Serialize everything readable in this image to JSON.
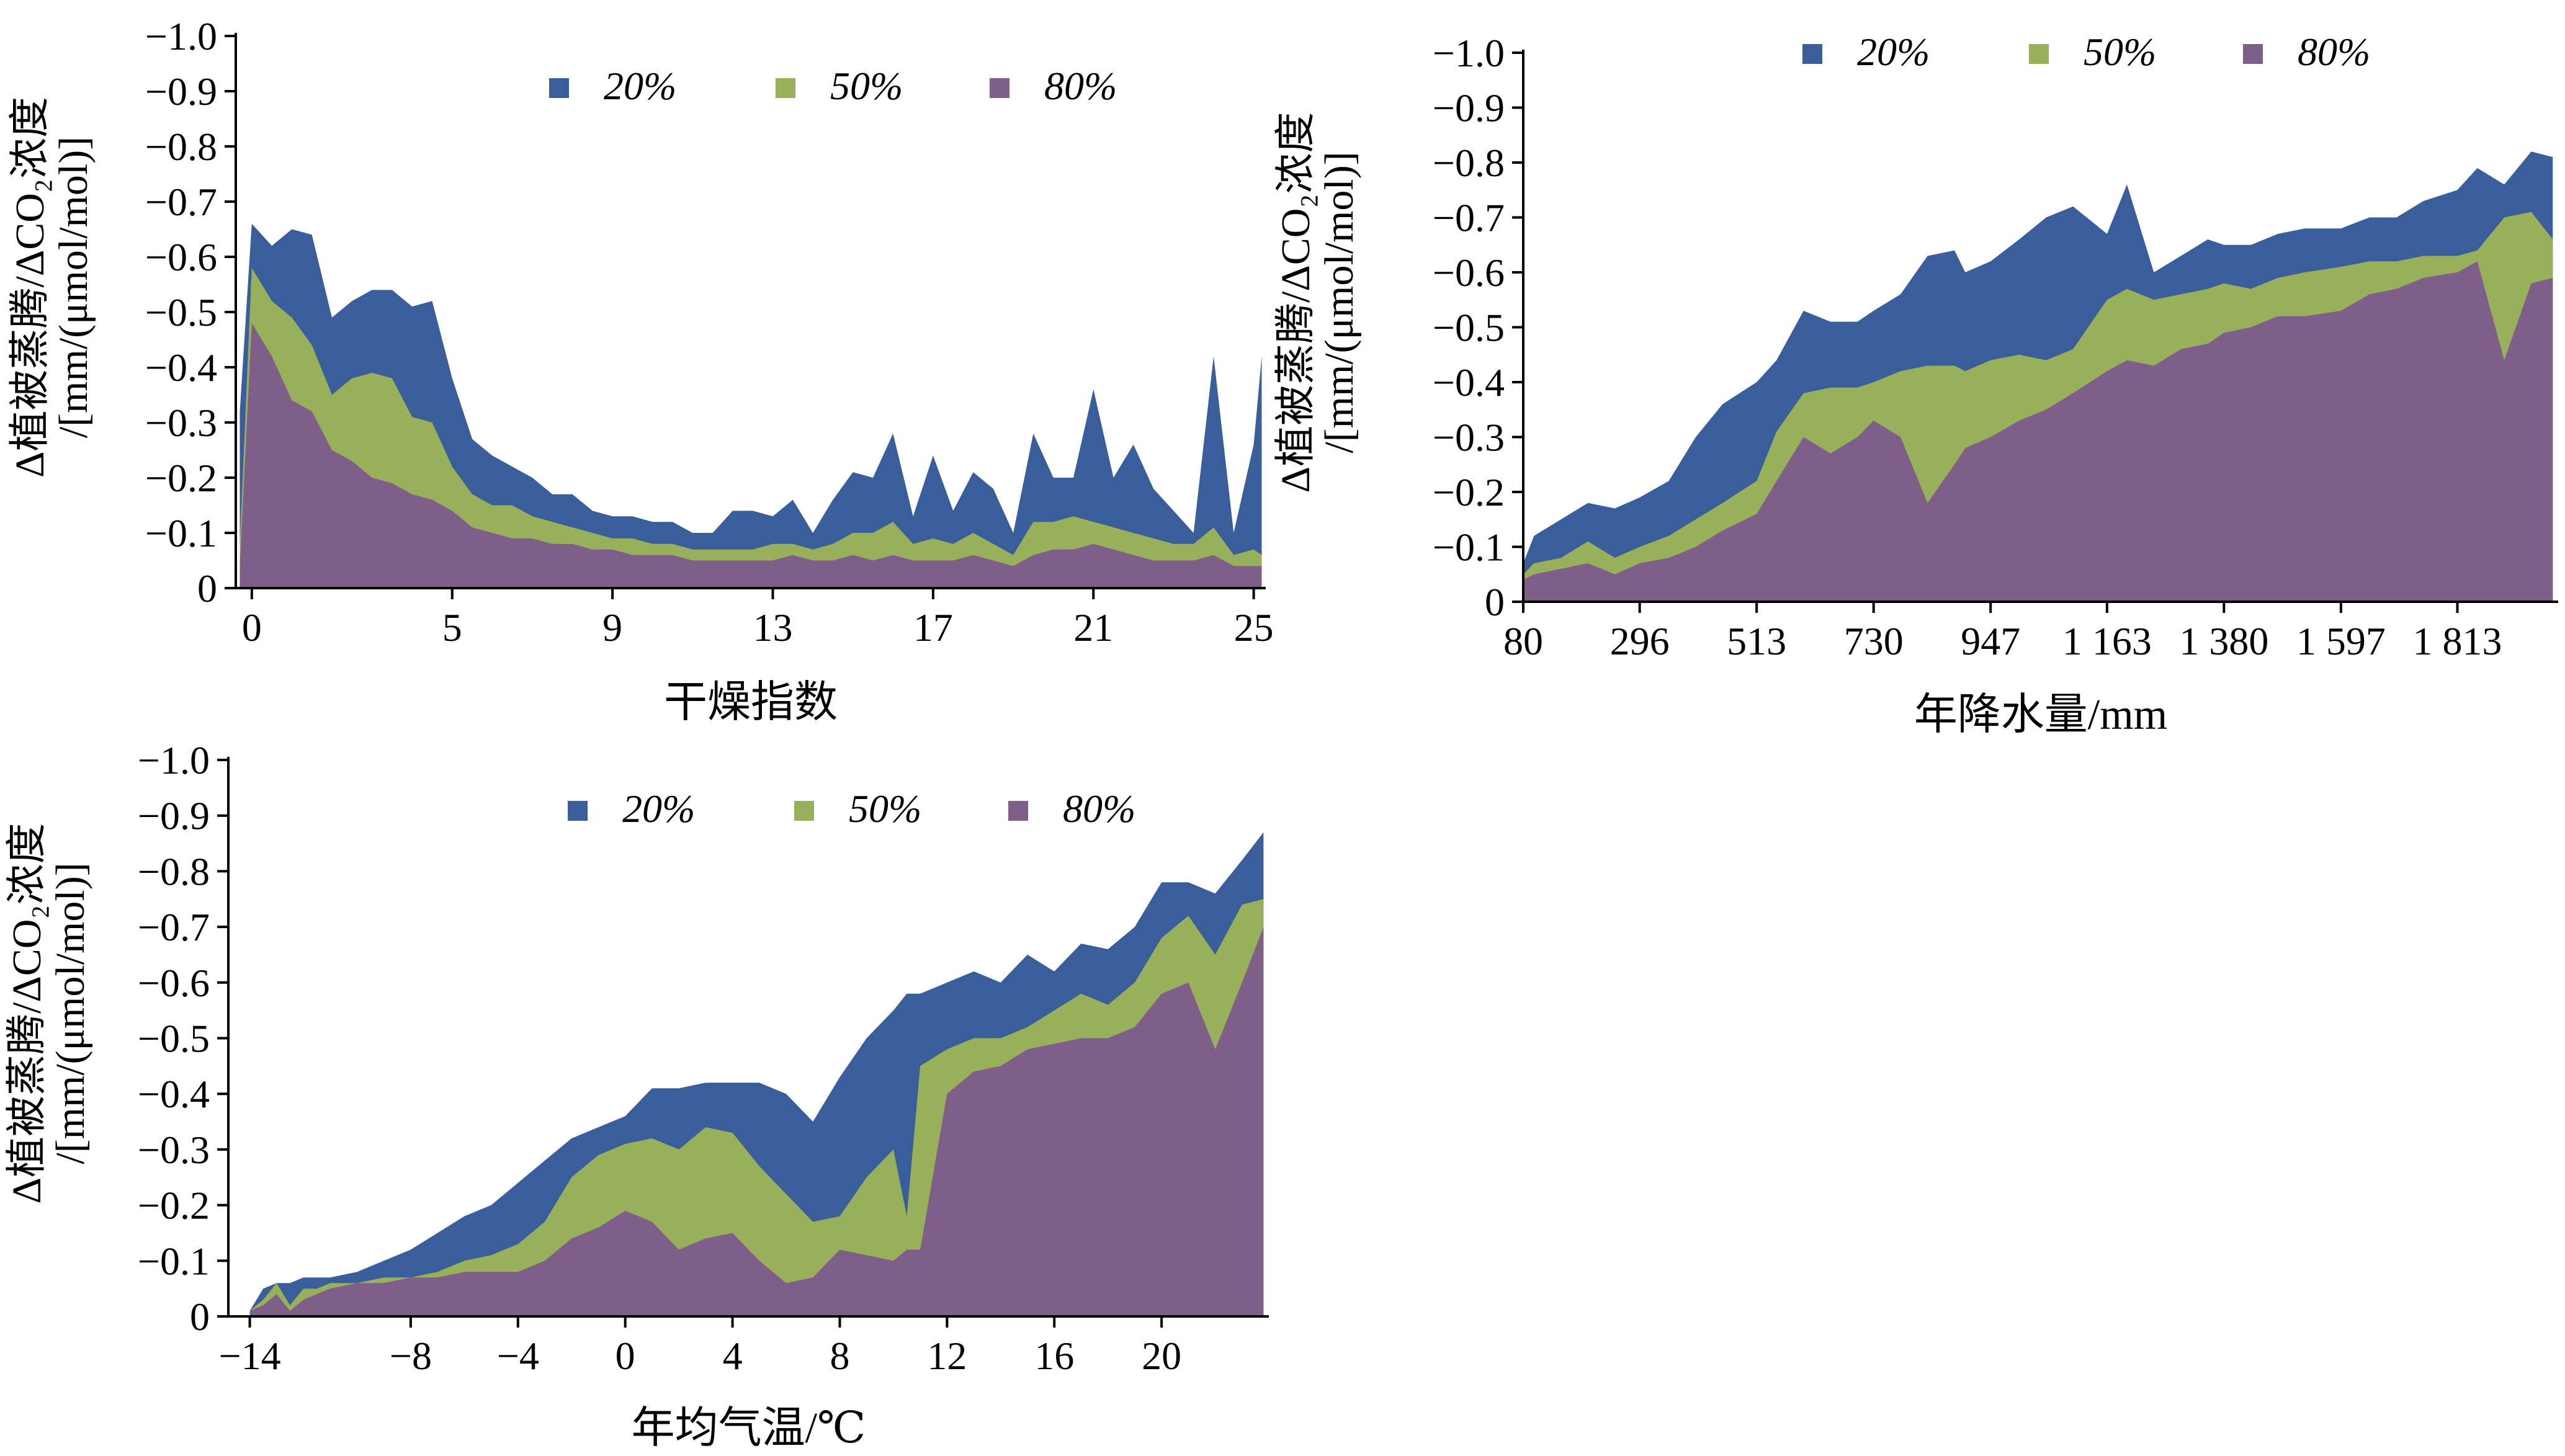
{
  "colors": {
    "20%": "#3a5e9c",
    "50%": "#98b05a",
    "80%": "#7f5e8a",
    "axis": "#000000"
  },
  "ylabel_lines": [
    "Δ植被蒸腾/ΔCO₂浓度",
    "/[mm/(μmol/mol)]"
  ],
  "chart_data": [
    {
      "type": "area",
      "xlabel": "干燥指数",
      "ylabel": "Δ植被蒸腾/ΔCO₂浓度/[mm/(μmol/mol)]",
      "xlim": [
        -0.4,
        25.3
      ],
      "ylim": [
        0,
        -1.0
      ],
      "yticks": [
        0,
        -0.1,
        -0.2,
        -0.3,
        -0.4,
        -0.5,
        -0.6,
        -0.7,
        -0.8,
        -0.9,
        -1.0
      ],
      "ytick_labels": [
        "0",
        "−0.1",
        "−0.2",
        "−0.3",
        "−0.4",
        "−0.5",
        "−0.6",
        "−0.7",
        "−0.8",
        "−0.9",
        "−1.0"
      ],
      "xticks": [
        0,
        5,
        9,
        13,
        17,
        21,
        25
      ],
      "xtick_labels": [
        "0",
        "5",
        "9",
        "13",
        "17",
        "21",
        "25"
      ],
      "legend": [
        "20%",
        "50%",
        "80%"
      ],
      "legend_position": "top-center",
      "x": [
        -0.3,
        0,
        0.5,
        1,
        1.5,
        2,
        2.5,
        3,
        3.5,
        4,
        4.5,
        5,
        5.5,
        6,
        6.5,
        7,
        7.5,
        8,
        8.5,
        9,
        9.5,
        10,
        10.5,
        11,
        11.5,
        12,
        12.5,
        13,
        13.5,
        14,
        14.5,
        15,
        15.5,
        16,
        16.5,
        17,
        17.5,
        18,
        18.5,
        19,
        19.5,
        20,
        20.5,
        21,
        21.5,
        22,
        22.5,
        23,
        23.5,
        24,
        24.5,
        25,
        25.2
      ],
      "series": [
        {
          "name": "20%",
          "values": [
            -0.32,
            -0.66,
            -0.62,
            -0.65,
            -0.64,
            -0.49,
            -0.52,
            -0.54,
            -0.54,
            -0.51,
            -0.52,
            -0.38,
            -0.27,
            -0.24,
            -0.22,
            -0.2,
            -0.17,
            -0.17,
            -0.14,
            -0.13,
            -0.13,
            -0.12,
            -0.12,
            -0.1,
            -0.1,
            -0.14,
            -0.14,
            -0.13,
            -0.16,
            -0.1,
            -0.16,
            -0.21,
            -0.2,
            -0.28,
            -0.13,
            -0.24,
            -0.14,
            -0.21,
            -0.18,
            -0.1,
            -0.28,
            -0.2,
            -0.2,
            -0.36,
            -0.2,
            -0.26,
            -0.18,
            -0.14,
            -0.1,
            -0.42,
            -0.1,
            -0.26,
            -0.42
          ]
        },
        {
          "name": "50%",
          "values": [
            -0.08,
            -0.58,
            -0.52,
            -0.49,
            -0.44,
            -0.35,
            -0.38,
            -0.39,
            -0.38,
            -0.31,
            -0.3,
            -0.22,
            -0.17,
            -0.15,
            -0.15,
            -0.13,
            -0.12,
            -0.11,
            -0.1,
            -0.09,
            -0.09,
            -0.08,
            -0.08,
            -0.07,
            -0.07,
            -0.07,
            -0.07,
            -0.08,
            -0.08,
            -0.07,
            -0.08,
            -0.1,
            -0.1,
            -0.12,
            -0.08,
            -0.09,
            -0.08,
            -0.1,
            -0.08,
            -0.06,
            -0.12,
            -0.12,
            -0.13,
            -0.12,
            -0.11,
            -0.1,
            -0.09,
            -0.08,
            -0.08,
            -0.11,
            -0.06,
            -0.07,
            -0.06
          ]
        },
        {
          "name": "80%",
          "values": [
            -0.04,
            -0.48,
            -0.42,
            -0.34,
            -0.32,
            -0.25,
            -0.23,
            -0.2,
            -0.19,
            -0.17,
            -0.16,
            -0.14,
            -0.11,
            -0.1,
            -0.09,
            -0.09,
            -0.08,
            -0.08,
            -0.07,
            -0.07,
            -0.06,
            -0.06,
            -0.06,
            -0.05,
            -0.05,
            -0.05,
            -0.05,
            -0.05,
            -0.06,
            -0.05,
            -0.05,
            -0.06,
            -0.05,
            -0.06,
            -0.05,
            -0.05,
            -0.05,
            -0.06,
            -0.05,
            -0.04,
            -0.06,
            -0.07,
            -0.07,
            -0.08,
            -0.07,
            -0.06,
            -0.05,
            -0.05,
            -0.05,
            -0.06,
            -0.04,
            -0.04,
            -0.04
          ]
        }
      ]
    },
    {
      "type": "area",
      "xlabel": "年降水量/mm",
      "ylabel": "Δ植被蒸腾/ΔCO₂浓度/[mm/(μmol/mol)]",
      "xlim": [
        80,
        2000
      ],
      "ylim": [
        0,
        -1.0
      ],
      "yticks": [
        0,
        -0.1,
        -0.2,
        -0.3,
        -0.4,
        -0.5,
        -0.6,
        -0.7,
        -0.8,
        -0.9,
        -1.0
      ],
      "ytick_labels": [
        "0",
        "−0.1",
        "−0.2",
        "−0.3",
        "−0.4",
        "−0.5",
        "−0.6",
        "−0.7",
        "−0.8",
        "−0.9",
        "−1.0"
      ],
      "xticks": [
        80,
        296,
        513,
        730,
        947,
        1163,
        1380,
        1597,
        1813
      ],
      "xtick_labels": [
        "80",
        "296",
        "513",
        "730",
        "947",
        "1 163",
        "1 380",
        "1 597",
        "1 813"
      ],
      "legend": [
        "20%",
        "50%",
        "80%"
      ],
      "legend_position": "top-center",
      "x": [
        80,
        100,
        150,
        200,
        250,
        296,
        350,
        400,
        450,
        513,
        550,
        600,
        650,
        700,
        730,
        780,
        830,
        880,
        900,
        947,
        1000,
        1050,
        1100,
        1163,
        1200,
        1250,
        1300,
        1350,
        1380,
        1430,
        1480,
        1530,
        1597,
        1650,
        1700,
        1750,
        1813,
        1850,
        1900,
        1950,
        1990
      ],
      "series": [
        {
          "name": "20%",
          "values": [
            -0.07,
            -0.12,
            -0.15,
            -0.18,
            -0.17,
            -0.19,
            -0.22,
            -0.3,
            -0.36,
            -0.4,
            -0.44,
            -0.53,
            -0.51,
            -0.51,
            -0.53,
            -0.56,
            -0.63,
            -0.64,
            -0.6,
            -0.62,
            -0.66,
            -0.7,
            -0.72,
            -0.67,
            -0.76,
            -0.6,
            -0.63,
            -0.66,
            -0.65,
            -0.65,
            -0.67,
            -0.68,
            -0.68,
            -0.7,
            -0.7,
            -0.73,
            -0.75,
            -0.79,
            -0.76,
            -0.82,
            -0.81
          ]
        },
        {
          "name": "50%",
          "values": [
            -0.05,
            -0.07,
            -0.08,
            -0.11,
            -0.08,
            -0.1,
            -0.12,
            -0.15,
            -0.18,
            -0.22,
            -0.31,
            -0.38,
            -0.39,
            -0.39,
            -0.4,
            -0.42,
            -0.43,
            -0.43,
            -0.42,
            -0.44,
            -0.45,
            -0.44,
            -0.46,
            -0.55,
            -0.57,
            -0.55,
            -0.56,
            -0.57,
            -0.58,
            -0.57,
            -0.59,
            -0.6,
            -0.61,
            -0.62,
            -0.62,
            -0.63,
            -0.63,
            -0.64,
            -0.7,
            -0.71,
            -0.66
          ]
        },
        {
          "name": "80%",
          "values": [
            -0.04,
            -0.05,
            -0.06,
            -0.07,
            -0.05,
            -0.07,
            -0.08,
            -0.1,
            -0.13,
            -0.16,
            -0.22,
            -0.3,
            -0.27,
            -0.3,
            -0.33,
            -0.3,
            -0.18,
            -0.25,
            -0.28,
            -0.3,
            -0.33,
            -0.35,
            -0.38,
            -0.42,
            -0.44,
            -0.43,
            -0.46,
            -0.47,
            -0.49,
            -0.5,
            -0.52,
            -0.52,
            -0.53,
            -0.56,
            -0.57,
            -0.59,
            -0.6,
            -0.62,
            -0.44,
            -0.58,
            -0.59
          ]
        }
      ]
    },
    {
      "type": "area",
      "xlabel": "年均气温/℃",
      "ylabel": "Δ植被蒸腾/ΔCO₂浓度/[mm/(μmol/mol)]",
      "xlim": [
        -14.8,
        24
      ],
      "ylim": [
        0,
        -1.0
      ],
      "yticks": [
        0,
        -0.1,
        -0.2,
        -0.3,
        -0.4,
        -0.5,
        -0.6,
        -0.7,
        -0.8,
        -0.9,
        -1.0
      ],
      "ytick_labels": [
        "0",
        "−0.1",
        "−0.2",
        "−0.3",
        "−0.4",
        "−0.5",
        "−0.6",
        "−0.7",
        "−0.8",
        "−0.9",
        "−1.0"
      ],
      "xticks": [
        -14,
        -8,
        -4,
        0,
        4,
        8,
        12,
        16,
        20
      ],
      "xtick_labels": [
        "−14",
        "−8",
        "−4",
        "0",
        "4",
        "8",
        "12",
        "16",
        "20"
      ],
      "legend": [
        "20%",
        "50%",
        "80%"
      ],
      "legend_position": "top-center",
      "x": [
        -14,
        -13.5,
        -13,
        -12.5,
        -12,
        -11.5,
        -11,
        -10,
        -9,
        -8,
        -7,
        -6,
        -5,
        -4,
        -3,
        -2,
        -1,
        0,
        1,
        2,
        3,
        4,
        5,
        6,
        7,
        8,
        9,
        10,
        10.5,
        11,
        12,
        13,
        14,
        15,
        16,
        17,
        18,
        19,
        20,
        21,
        22,
        23,
        23.8
      ],
      "series": [
        {
          "name": "20%",
          "values": [
            -0.01,
            -0.05,
            -0.06,
            -0.06,
            -0.07,
            -0.07,
            -0.07,
            -0.08,
            -0.1,
            -0.12,
            -0.15,
            -0.18,
            -0.2,
            -0.24,
            -0.28,
            -0.32,
            -0.34,
            -0.36,
            -0.41,
            -0.41,
            -0.42,
            -0.42,
            -0.42,
            -0.4,
            -0.35,
            -0.43,
            -0.5,
            -0.55,
            -0.58,
            -0.58,
            -0.6,
            -0.62,
            -0.6,
            -0.65,
            -0.62,
            -0.67,
            -0.66,
            -0.7,
            -0.78,
            -0.78,
            -0.76,
            -0.82,
            -0.87
          ]
        },
        {
          "name": "50%",
          "values": [
            -0.01,
            -0.03,
            -0.06,
            -0.02,
            -0.05,
            -0.05,
            -0.06,
            -0.06,
            -0.07,
            -0.07,
            -0.08,
            -0.1,
            -0.11,
            -0.13,
            -0.17,
            -0.25,
            -0.29,
            -0.31,
            -0.32,
            -0.3,
            -0.34,
            -0.33,
            -0.27,
            -0.22,
            -0.17,
            -0.18,
            -0.25,
            -0.3,
            -0.18,
            -0.45,
            -0.48,
            -0.5,
            -0.5,
            -0.52,
            -0.55,
            -0.58,
            -0.56,
            -0.6,
            -0.68,
            -0.72,
            -0.65,
            -0.74,
            -0.75
          ]
        },
        {
          "name": "80%",
          "values": [
            -0.01,
            -0.02,
            -0.04,
            -0.01,
            -0.03,
            -0.04,
            -0.05,
            -0.06,
            -0.06,
            -0.07,
            -0.07,
            -0.08,
            -0.08,
            -0.08,
            -0.1,
            -0.14,
            -0.16,
            -0.19,
            -0.17,
            -0.12,
            -0.14,
            -0.15,
            -0.1,
            -0.06,
            -0.07,
            -0.12,
            -0.11,
            -0.1,
            -0.12,
            -0.12,
            -0.4,
            -0.44,
            -0.45,
            -0.48,
            -0.49,
            -0.5,
            -0.5,
            -0.52,
            -0.58,
            -0.6,
            -0.48,
            -0.6,
            -0.7
          ]
        }
      ]
    }
  ]
}
